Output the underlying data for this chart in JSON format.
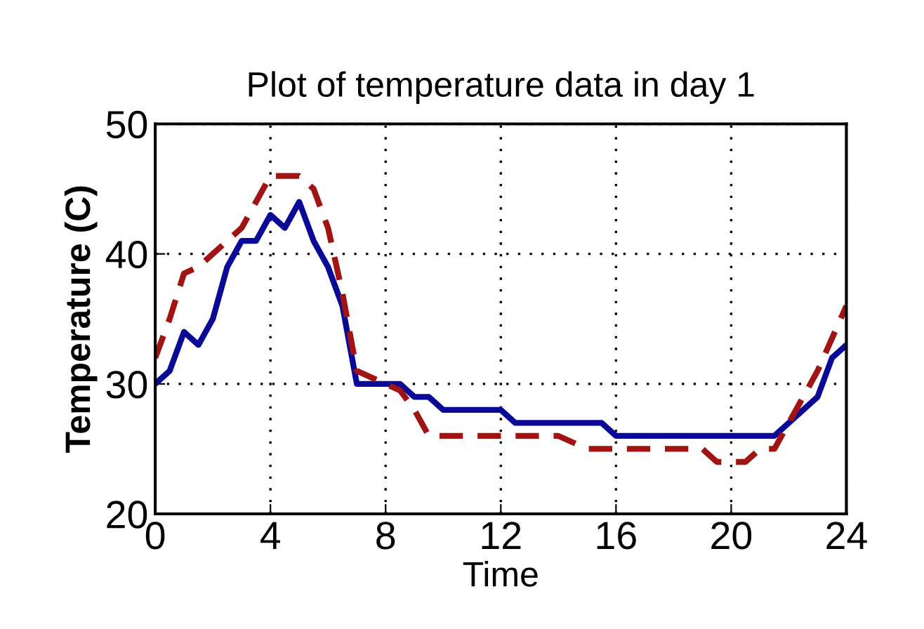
{
  "chart_data": {
    "type": "line",
    "title": "Plot of temperature data in day 1",
    "xlabel": "Time",
    "ylabel": "Temperature (C)",
    "xlim": [
      0,
      24
    ],
    "xticks": [
      0,
      4,
      8,
      12,
      16,
      20,
      24
    ],
    "ylim": [
      20,
      50
    ],
    "yticks": [
      20,
      30,
      40,
      50
    ],
    "grid": true,
    "legend": false,
    "series": [
      {
        "color": "#0a0a96",
        "line_style": "solid",
        "x": [
          0,
          0.5,
          1,
          1.5,
          2,
          2.5,
          3,
          3.5,
          4,
          4.5,
          5,
          5.5,
          6,
          6.5,
          7,
          8,
          8.5,
          9,
          9.5,
          10,
          12,
          12.5,
          15.5,
          16,
          21.5,
          22,
          23,
          23.5,
          24
        ],
        "values": [
          30,
          31,
          34,
          33,
          35,
          39,
          41,
          41,
          43,
          42,
          44,
          41,
          39,
          36,
          30,
          30,
          30,
          29,
          29,
          28,
          28,
          27,
          27,
          26,
          26,
          27,
          29,
          32,
          33
        ]
      },
      {
        "color": "#a01414",
        "line_style": "dashed",
        "x": [
          0,
          0.5,
          1,
          1.5,
          2,
          3,
          3.5,
          4,
          4.5,
          5,
          5.5,
          6,
          6.5,
          7,
          8,
          8.5,
          9,
          9.5,
          10,
          14,
          15,
          19,
          19.5,
          20.5,
          21,
          21.5,
          22,
          23,
          24
        ],
        "values": [
          32,
          35,
          38.5,
          39,
          40,
          42,
          44,
          46,
          46,
          46,
          45,
          42,
          37,
          31,
          30,
          29.5,
          28,
          26,
          26,
          26,
          25,
          25,
          24,
          24,
          25,
          25,
          27,
          31,
          36
        ]
      }
    ]
  }
}
